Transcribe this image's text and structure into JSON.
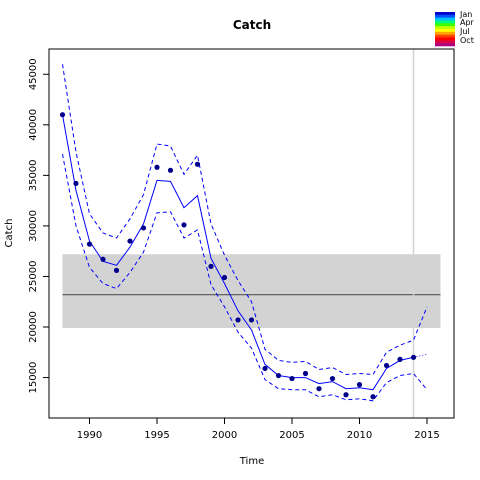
{
  "chart_data": {
    "type": "line",
    "title": "Catch",
    "xlabel": "Time",
    "ylabel": "Catch",
    "xlim": [
      1987,
      2017
    ],
    "ylim": [
      11000,
      47500
    ],
    "x_ticks": [
      1990,
      1995,
      2000,
      2005,
      2010,
      2015
    ],
    "x_tick_labels": [
      "1990",
      "1995",
      "2000",
      "2005",
      "2010",
      "2015"
    ],
    "y_ticks": [
      15000,
      20000,
      25000,
      30000,
      35000,
      40000,
      45000
    ],
    "y_tick_labels": [
      "15000",
      "20000",
      "25000",
      "30000",
      "35000",
      "40000",
      "45000"
    ],
    "grid": false,
    "reference_band": {
      "from_x": 1988,
      "to_x": 2016,
      "y_low": 19900,
      "y_high": 27200,
      "y_mid": 23200,
      "color": "#d3d3d3",
      "line_color": "#555555"
    },
    "vertical_marker": {
      "x": 2014,
      "color": "#d3d3d3"
    },
    "observed": {
      "x": [
        1988,
        1989,
        1990,
        1991,
        1992,
        1993,
        1994,
        1995,
        1996,
        1997,
        1998,
        1999,
        2000,
        2001,
        2002,
        2003,
        2004,
        2005,
        2006,
        2007,
        2008,
        2009,
        2010,
        2011,
        2012,
        2013,
        2014
      ],
      "y": [
        41000,
        34200,
        28200,
        26700,
        25600,
        28500,
        29800,
        35800,
        35500,
        30100,
        36100,
        26000,
        24900,
        20700,
        20700,
        15900,
        15200,
        14900,
        15400,
        13900,
        14900,
        13300,
        14300,
        13100,
        16200,
        16800,
        17000
      ],
      "color": "#00008b"
    },
    "fitted": {
      "x": [
        1988,
        1989,
        1990,
        1991,
        1992,
        1993,
        1994,
        1995,
        1996,
        1997,
        1998,
        1999,
        2000,
        2001,
        2002,
        2003,
        2004,
        2005,
        2006,
        2007,
        2008,
        2009,
        2010,
        2011,
        2012,
        2013,
        2014
      ],
      "y": [
        41000,
        33500,
        28500,
        26500,
        26100,
        27900,
        30200,
        34500,
        34400,
        31800,
        33000,
        26800,
        24300,
        21600,
        19700,
        16300,
        15200,
        15000,
        15000,
        14400,
        14600,
        13900,
        14000,
        13800,
        15900,
        16700,
        17000
      ],
      "color": "#0000ff"
    },
    "upper_ci": {
      "x": [
        1988,
        1989,
        1990,
        1991,
        1992,
        1993,
        1994,
        1995,
        1996,
        1997,
        1998,
        1999,
        2000,
        2001,
        2002,
        2003,
        2004,
        2005,
        2006,
        2007,
        2008,
        2009,
        2010,
        2011,
        2012,
        2013,
        2014,
        2015
      ],
      "y": [
        46000,
        37300,
        31200,
        29300,
        28800,
        30700,
        33100,
        38100,
        37900,
        35100,
        37000,
        30200,
        27100,
        24600,
        22500,
        17800,
        16700,
        16500,
        16600,
        15800,
        16000,
        15300,
        15400,
        15300,
        17500,
        18200,
        18700,
        22000
      ],
      "color": "#0000ff"
    },
    "lower_ci": {
      "x": [
        1988,
        1989,
        1990,
        1991,
        1992,
        1993,
        1994,
        1995,
        1996,
        1997,
        1998,
        1999,
        2000,
        2001,
        2002,
        2003,
        2004,
        2005,
        2006,
        2007,
        2008,
        2009,
        2010,
        2011,
        2012,
        2013,
        2014,
        2015
      ],
      "y": [
        37100,
        30000,
        25900,
        24300,
        23800,
        25400,
        27400,
        31300,
        31400,
        28800,
        29600,
        24200,
        22000,
        19500,
        17900,
        14800,
        13900,
        13800,
        13800,
        13100,
        13300,
        12800,
        12900,
        12700,
        14500,
        15200,
        15400,
        13800
      ],
      "color": "#0000ff"
    },
    "projection": {
      "x": [
        2014,
        2015
      ],
      "y": [
        17000,
        17300
      ],
      "color": "#0000ff"
    },
    "legend": {
      "placement": "top-right",
      "labels": [
        "Jan",
        "Apr",
        "Jul",
        "Oct"
      ],
      "colors": [
        "#0000cd",
        "#0055ff",
        "#00c0ff",
        "#00ff80",
        "#40ff00",
        "#c0ff00",
        "#ffff00",
        "#ffa500",
        "#ff4000",
        "#ff0000",
        "#dd0044",
        "#b00080"
      ]
    }
  }
}
